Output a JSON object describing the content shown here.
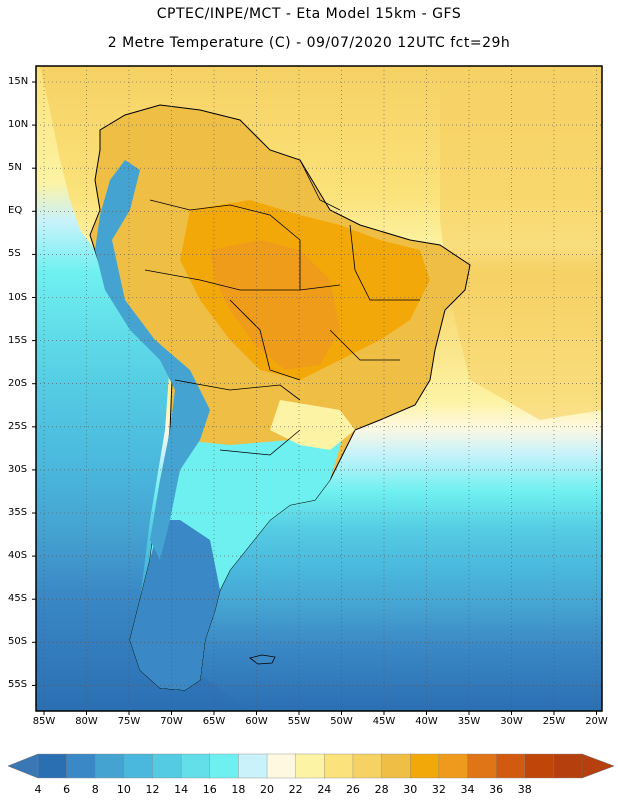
{
  "header": {
    "line1": "CPTEC/INPE/MCT -  Eta Model 15km - GFS",
    "line2": "2 Metre Temperature (C) - 09/07/2020 12UTC fct=29h"
  },
  "map": {
    "lat_labels": [
      "15N",
      "10N",
      "5N",
      "EQ",
      "5S",
      "10S",
      "15S",
      "20S",
      "25S",
      "30S",
      "35S",
      "40S",
      "45S",
      "50S",
      "55S"
    ],
    "lon_labels": [
      "85W",
      "80W",
      "75W",
      "70W",
      "65W",
      "60W",
      "55W",
      "50W",
      "45W",
      "40W",
      "35W",
      "30W",
      "25W",
      "20W"
    ],
    "variable": "2 Metre Temperature",
    "units": "C",
    "lon_range": [
      -85,
      -20
    ],
    "lat_range": [
      -58,
      16
    ]
  },
  "colorbar": {
    "levels": [
      "4",
      "6",
      "8",
      "10",
      "12",
      "14",
      "16",
      "18",
      "20",
      "22",
      "24",
      "26",
      "28",
      "30",
      "32",
      "34",
      "36",
      "38"
    ],
    "colors": [
      "#2b6fb3",
      "#3a88c5",
      "#45a3d1",
      "#4ab8dd",
      "#54cbe3",
      "#62dfe9",
      "#6ff0f0",
      "#c9f2fb",
      "#fff8e0",
      "#fdf3a4",
      "#fbe27a",
      "#f6d164",
      "#efbf45",
      "#f3a80a",
      "#ee9a1c",
      "#e07518",
      "#d15a10",
      "#c04508",
      "#b5400e"
    ],
    "low_color": "#3a78b5",
    "high_color": "#b5400e"
  }
}
